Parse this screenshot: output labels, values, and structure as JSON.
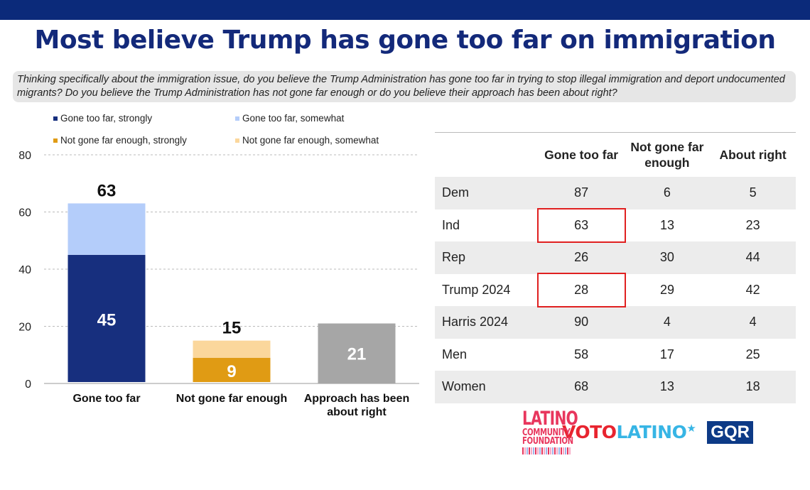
{
  "title": "Most believe Trump has gone too far on immigration",
  "question": "Thinking specifically about the immigration issue, do you believe the Trump Administration has gone too far in trying to stop illegal immigration and deport undocumented migrants? Do you believe the Trump Administration has not gone far enough or do you believe their approach has been about right?",
  "chart_data": {
    "type": "bar",
    "stacked": true,
    "categories": [
      "Gone too far",
      "Not gone far enough",
      "Approach has been about right"
    ],
    "series": [
      {
        "name": "Gone too far, strongly",
        "color": "#172f7e",
        "values": [
          45,
          null,
          null
        ]
      },
      {
        "name": "Gone too far, somewhat",
        "color": "#b4cdfa",
        "values": [
          18,
          null,
          null
        ]
      },
      {
        "name": "Not gone far enough, strongly",
        "color": "#e09b14",
        "values": [
          null,
          9,
          null
        ]
      },
      {
        "name": "Not gone far enough, somewhat",
        "color": "#fbd79c",
        "values": [
          null,
          6,
          null
        ]
      },
      {
        "color": "#a6a6a6",
        "values": [
          null,
          null,
          21
        ]
      }
    ],
    "totals": [
      63,
      15,
      21
    ],
    "ylim": [
      0,
      80
    ],
    "yticks": [
      0,
      20,
      40,
      60,
      80
    ],
    "grid": true,
    "legend": "top"
  },
  "table": {
    "headers": [
      "",
      "Gone too far",
      "Not gone far enough",
      "About right"
    ],
    "rows": [
      {
        "label": "Dem",
        "values": [
          "87",
          "6",
          "5"
        ],
        "highlight": false
      },
      {
        "label": "Ind",
        "values": [
          "63",
          "13",
          "23"
        ],
        "highlight": true
      },
      {
        "label": "Rep",
        "values": [
          "26",
          "30",
          "44"
        ],
        "highlight": false
      },
      {
        "label": "Trump 2024",
        "values": [
          "28",
          "29",
          "42"
        ],
        "highlight": true
      },
      {
        "label": "Harris 2024",
        "values": [
          "90",
          "4",
          "4"
        ],
        "highlight": false
      },
      {
        "label": "Men",
        "values": [
          "58",
          "17",
          "25"
        ],
        "highlight": false
      },
      {
        "label": "Women",
        "values": [
          "68",
          "13",
          "18"
        ],
        "highlight": false
      }
    ]
  },
  "logos": {
    "lcf": [
      "LATINO",
      "COMMUNITY",
      "FOUNDATION"
    ],
    "voto1": "VOTO",
    "voto2": "LATINO",
    "gqr": "GQR"
  }
}
